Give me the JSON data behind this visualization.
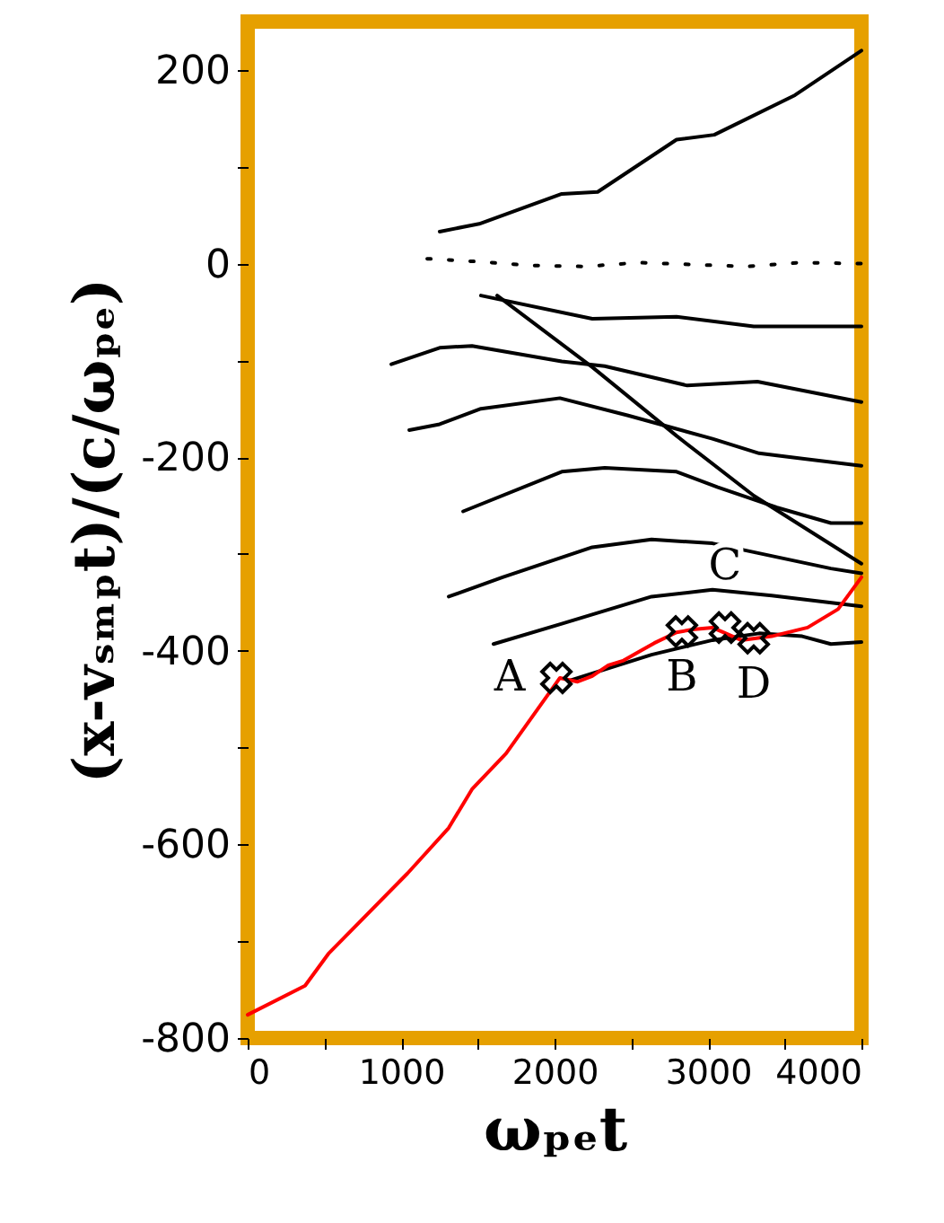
{
  "chart_data": {
    "type": "line",
    "xlabel": "ωₚₑt",
    "ylabel": "(x-vₛₘₚt)/(c/ωₚₑ)",
    "xlim": [
      0,
      4000
    ],
    "ylim": [
      -800,
      250
    ],
    "xticks": [
      0,
      {
        "value": 500,
        "label": null
      },
      1000,
      {
        "value": 1500,
        "label": null
      },
      2000,
      {
        "value": 2500,
        "label": null
      },
      3000,
      {
        "value": 3500,
        "label": null
      },
      4000
    ],
    "yticks": [
      -800,
      {
        "value": -700,
        "label": null
      },
      -600,
      {
        "value": -500,
        "label": null
      },
      -400,
      {
        "value": -300,
        "label": null
      },
      -200,
      {
        "value": -100,
        "label": null
      },
      0,
      {
        "value": 100,
        "label": null
      },
      200
    ],
    "grid": false,
    "series": [
      {
        "color": "#000000",
        "x": [
          1251,
          1509,
          2047,
          2281,
          2795,
          3041,
          3567,
          4000
        ],
        "values": [
          33,
          41,
          72,
          74,
          128,
          133,
          174,
          220
        ]
      },
      {
        "color": "#000000",
        "line_style": "dotted",
        "x": [
          1170,
          1500,
          1850,
          2200,
          2550,
          2900,
          3250,
          3600,
          4000
        ],
        "values": [
          5,
          2,
          -2,
          -3,
          1,
          -1,
          -3,
          1,
          0
        ]
      },
      {
        "color": "#000000",
        "x": [
          1626,
          2246,
          2795,
          3300,
          4000
        ],
        "values": [
          -33,
          -107,
          -178,
          -240,
          -310
        ]
      },
      {
        "color": "#000000",
        "x": [
          1520,
          2246,
          2795,
          3298,
          4000
        ],
        "values": [
          -33,
          -57,
          -55,
          -65,
          -65
        ]
      },
      {
        "color": "#000000",
        "x": [
          936,
          1251,
          1462,
          2047,
          2327,
          2865,
          3322,
          4000
        ],
        "values": [
          -104,
          -87,
          -85,
          -101,
          -106,
          -126,
          -122,
          -143
        ]
      },
      {
        "color": "#000000",
        "x": [
          1053,
          1251,
          1520,
          2035,
          2480,
          3029,
          3333,
          4000
        ],
        "values": [
          -172,
          -166,
          -150,
          -139,
          -157,
          -181,
          -196,
          -209
        ]
      },
      {
        "color": "#000000",
        "x": [
          1404,
          2047,
          2327,
          2795,
          3064,
          3450,
          3801,
          4000
        ],
        "values": [
          -256,
          -215,
          -211,
          -215,
          -231,
          -252,
          -268,
          -268
        ]
      },
      {
        "color": "#000000",
        "x": [
          1310,
          1661,
          2246,
          2632,
          3029,
          3415,
          3801,
          4000
        ],
        "values": [
          -344,
          -324,
          -293,
          -285,
          -289,
          -302,
          -315,
          -320
        ]
      },
      {
        "color": "#000000",
        "x": [
          1602,
          2047,
          2632,
          3029,
          3415,
          4000
        ],
        "values": [
          -393,
          -372,
          -344,
          -337,
          -343,
          -354
        ]
      },
      {
        "color": "#000000",
        "x": [
          2094,
          2632,
          3029,
          3333,
          3614,
          3801,
          4000
        ],
        "values": [
          -431,
          -404,
          -389,
          -382,
          -385,
          -393,
          -391
        ]
      },
      {
        "color": "#ff0000",
        "x": [
          0,
          374,
          526,
          1041,
          1310,
          1462,
          1684,
          2035,
          2150,
          2246,
          2350,
          2450,
          2561,
          2650,
          2795,
          2900,
          3029,
          3216,
          3415,
          3649,
          3848,
          4000
        ],
        "values": [
          -776,
          -746,
          -713,
          -630,
          -583,
          -543,
          -506,
          -428,
          -432,
          -426,
          -415,
          -410,
          -400,
          -392,
          -381,
          -378,
          -376,
          -389,
          -385,
          -376,
          -357,
          -324
        ]
      },
      {
        "type": "scatter",
        "marker": "cross",
        "color": "#000000",
        "x": [
          2012,
          2830,
          3111,
          3298
        ],
        "values": [
          -428,
          -380,
          -376,
          -387
        ]
      }
    ],
    "annotations": [
      {
        "text": "A",
        "x": 2012,
        "y": -428
      },
      {
        "text": "B",
        "x": 2830,
        "y": -380
      },
      {
        "text": "C",
        "x": 3111,
        "y": -376
      },
      {
        "text": "D",
        "x": 3298,
        "y": -387
      }
    ]
  }
}
